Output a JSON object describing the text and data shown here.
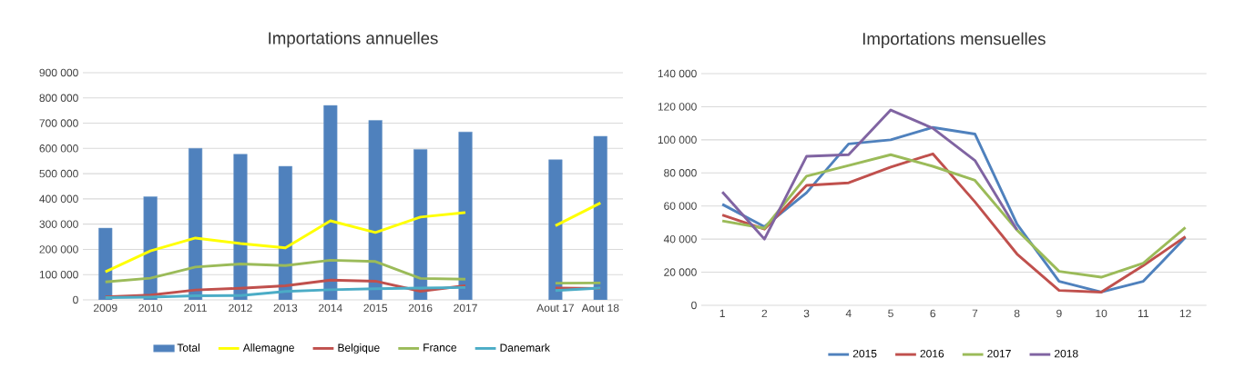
{
  "chart_data": [
    {
      "type": "bar",
      "title": "Importations annuelles",
      "categories": [
        "2009",
        "2010",
        "2011",
        "2012",
        "2013",
        "2014",
        "2015",
        "2016",
        "2017",
        null,
        "Aout 17",
        "Aout 18"
      ],
      "series": [
        {
          "name": "Total",
          "color": "#4f81bd",
          "values": [
            284000,
            409000,
            600000,
            577000,
            529000,
            770000,
            711000,
            596000,
            665000,
            null,
            555000,
            648000
          ]
        },
        {
          "name": "Allemagne",
          "type": "line",
          "color": "#ffff00",
          "values": [
            111000,
            194000,
            245000,
            223000,
            206000,
            313000,
            267000,
            328000,
            346000,
            null,
            294000,
            384000
          ]
        },
        {
          "name": "Belgique",
          "type": "line",
          "color": "#c0504d",
          "values": [
            12000,
            19000,
            39000,
            46000,
            56000,
            78000,
            74000,
            34000,
            56000,
            null,
            47000,
            45000
          ]
        },
        {
          "name": "France",
          "type": "line",
          "color": "#9bbb59",
          "values": [
            71000,
            86000,
            130000,
            142000,
            136000,
            157000,
            152000,
            85000,
            82000,
            null,
            66000,
            67000
          ]
        },
        {
          "name": "Danemark",
          "type": "line",
          "color": "#4bacc6",
          "values": [
            9000,
            11000,
            16000,
            17000,
            33000,
            40000,
            44000,
            47000,
            49000,
            null,
            37000,
            47000
          ]
        }
      ],
      "ylim": [
        0,
        900000
      ],
      "yticks": [
        0,
        {
          "value": 100000,
          "label": "100 000"
        },
        {
          "value": 200000,
          "label": "200 000"
        },
        {
          "value": 300000,
          "label": "300 000"
        },
        {
          "value": 400000,
          "label": "400 000"
        },
        {
          "value": 500000,
          "label": "500 000"
        },
        {
          "value": 600000,
          "label": "600 000"
        },
        {
          "value": 700000,
          "label": "700 000"
        },
        {
          "value": 800000,
          "label": "800 000"
        },
        {
          "value": 900000,
          "label": "900 000"
        }
      ],
      "grid": "y",
      "legend": "bottom"
    },
    {
      "type": "line",
      "title": "Importations mensuelles",
      "categories": [
        "1",
        "2",
        "3",
        "4",
        "5",
        "6",
        "7",
        "8",
        "9",
        "10",
        "11",
        "12"
      ],
      "series": [
        {
          "name": "2015",
          "color": "#4f81bd",
          "values": [
            61000,
            47500,
            68000,
            97500,
            100000,
            107500,
            103500,
            49000,
            14500,
            8000,
            14500,
            41000
          ]
        },
        {
          "name": "2016",
          "color": "#c0504d",
          "values": [
            54500,
            46000,
            72500,
            74000,
            83500,
            91500,
            62500,
            31000,
            9000,
            8000,
            24000,
            41500
          ]
        },
        {
          "name": "2017",
          "color": "#9bbb59",
          "values": [
            51000,
            46500,
            78000,
            84500,
            91000,
            84000,
            75500,
            45500,
            20500,
            17000,
            25500,
            47000
          ]
        },
        {
          "name": "2018",
          "color": "#8064a2",
          "values": [
            68500,
            40000,
            90000,
            91000,
            118000,
            107000,
            87500,
            45500,
            null,
            null,
            null,
            null
          ]
        }
      ],
      "ylim": [
        0,
        140000
      ],
      "yticks": [
        0,
        {
          "value": 20000,
          "label": "20 000"
        },
        {
          "value": 40000,
          "label": "40 000"
        },
        {
          "value": 60000,
          "label": "60 000"
        },
        {
          "value": 80000,
          "label": "80 000"
        },
        {
          "value": 100000,
          "label": "100 000"
        },
        {
          "value": 120000,
          "label": "120 000"
        },
        {
          "value": 140000,
          "label": "140 000"
        }
      ],
      "grid": "y",
      "legend": "bottom"
    }
  ]
}
